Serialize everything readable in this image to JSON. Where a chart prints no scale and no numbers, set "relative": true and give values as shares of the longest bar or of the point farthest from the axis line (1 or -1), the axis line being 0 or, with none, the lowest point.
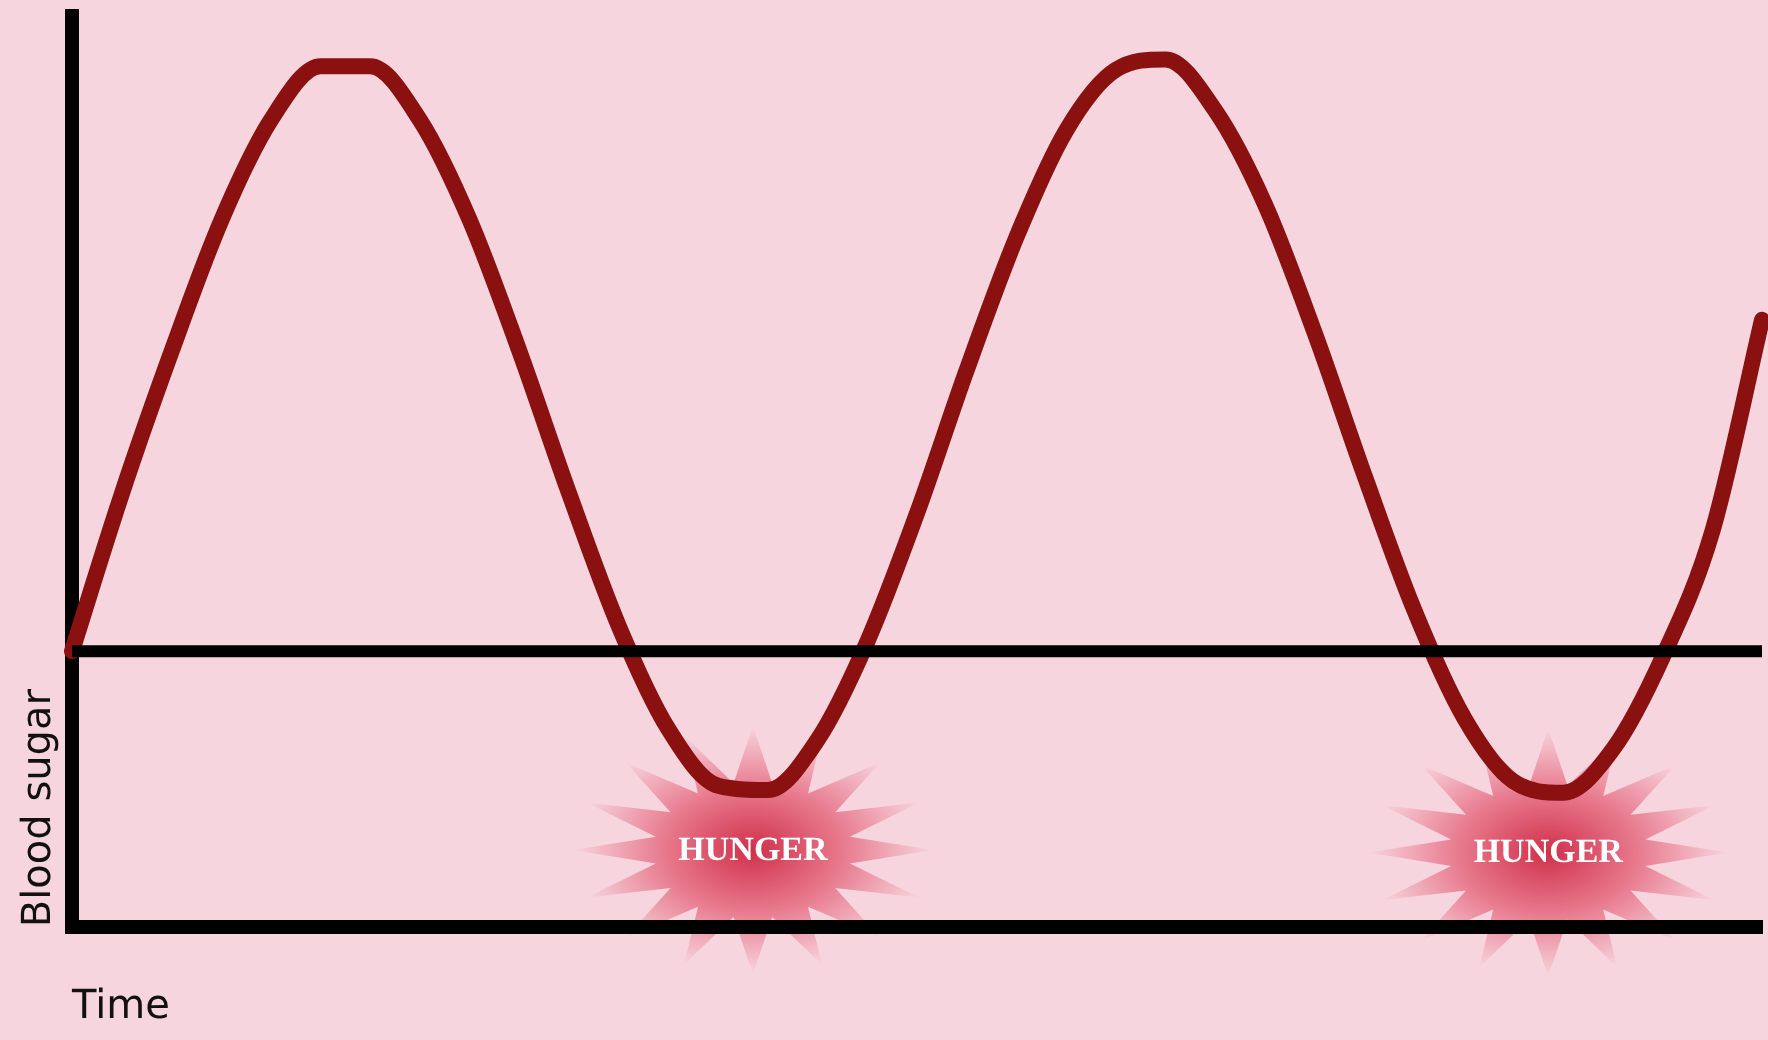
{
  "chart_data": {
    "type": "line",
    "relative": true,
    "xlabel": "Time",
    "ylabel": "Blood sugar",
    "categories": [
      null,
      null,
      null,
      null,
      null,
      null,
      null,
      null,
      null,
      null,
      null,
      null,
      null,
      null,
      null,
      null,
      null,
      null,
      null,
      null,
      null,
      null,
      null,
      null,
      null,
      null,
      null,
      null,
      null,
      null,
      null,
      null,
      null,
      null,
      null
    ],
    "series": [
      {
        "color": "#8b1010",
        "values": [
          0.318,
          0.499,
          0.663,
          0.814,
          0.93,
          0.992,
          0.992,
          0.93,
          0.815,
          0.664,
          0.5,
          0.347,
          0.228,
          0.163,
          0.158,
          0.216,
          0.329,
          0.477,
          0.642,
          0.795,
          0.918,
          0.988,
          1,
          0.941,
          0.833,
          0.685,
          0.521,
          0.366,
          0.242,
          0.168,
          0.155,
          0.205,
          0.311,
          0.456,
          0.7
        ]
      }
    ],
    "ref_lines": [
      {
        "axis": "y",
        "value": 0.318,
        "color": "#000000"
      }
    ],
    "annotations": [
      "HUNGER",
      "HUNGER"
    ],
    "grid": false,
    "legend": false,
    "marker": "none",
    "line_style": "solid"
  }
}
